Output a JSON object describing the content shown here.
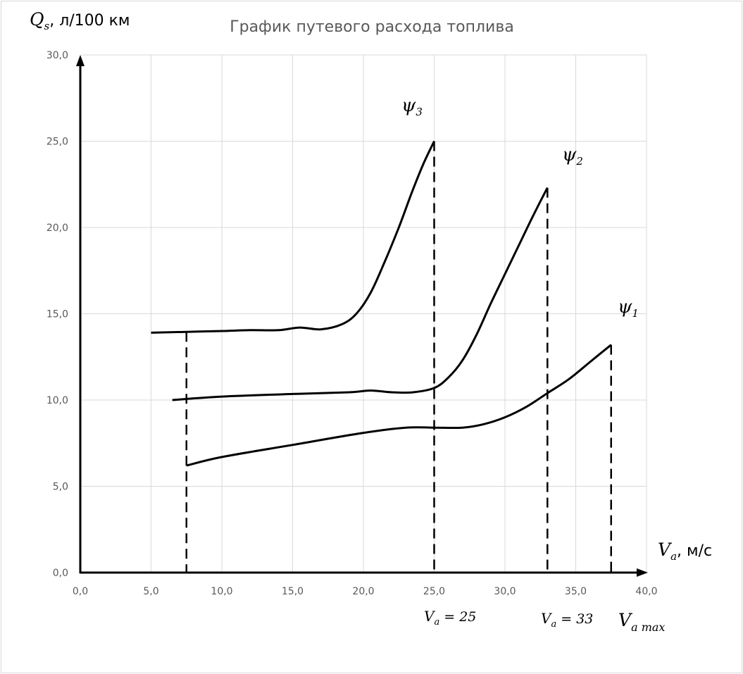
{
  "chart_data": {
    "type": "line",
    "title": "График путевого расхода топлива",
    "ylabel": {
      "symbol": "Q",
      "subscript": "s",
      "unit": ", л/100 км"
    },
    "xlabel": {
      "symbol": "V",
      "subscript": "a",
      "unit": ", м/с"
    },
    "xlim": [
      0,
      40
    ],
    "ylim": [
      0,
      30
    ],
    "xticks": [
      "0,0",
      "5,0",
      "10,0",
      "15,0",
      "20,0",
      "25,0",
      "30,0",
      "35,0",
      "40,0"
    ],
    "yticks": [
      "0,0",
      "5,0",
      "10,0",
      "15,0",
      "20,0",
      "25,0",
      "30,0"
    ],
    "grid": true,
    "series": [
      {
        "name": "ψ3",
        "label": {
          "symbol": "ψ",
          "subscript": "3"
        },
        "points": [
          [
            5.0,
            13.9
          ],
          [
            7.5,
            13.95
          ],
          [
            10.0,
            14.0
          ],
          [
            12.0,
            14.05
          ],
          [
            14.0,
            14.05
          ],
          [
            15.5,
            14.2
          ],
          [
            17.0,
            14.1
          ],
          [
            18.5,
            14.4
          ],
          [
            19.5,
            15.0
          ],
          [
            20.5,
            16.2
          ],
          [
            21.5,
            18.0
          ],
          [
            22.5,
            20.0
          ],
          [
            23.5,
            22.2
          ],
          [
            24.3,
            23.8
          ],
          [
            25.0,
            25.0
          ]
        ]
      },
      {
        "name": "ψ2",
        "label": {
          "symbol": "ψ",
          "subscript": "2"
        },
        "points": [
          [
            6.5,
            10.0
          ],
          [
            10.0,
            10.2
          ],
          [
            15.0,
            10.35
          ],
          [
            19.0,
            10.45
          ],
          [
            20.5,
            10.55
          ],
          [
            22.0,
            10.45
          ],
          [
            23.5,
            10.45
          ],
          [
            25.0,
            10.7
          ],
          [
            26.0,
            11.3
          ],
          [
            27.0,
            12.3
          ],
          [
            28.0,
            13.8
          ],
          [
            29.0,
            15.6
          ],
          [
            30.0,
            17.3
          ],
          [
            31.0,
            19.0
          ],
          [
            32.0,
            20.7
          ],
          [
            33.0,
            22.3
          ]
        ]
      },
      {
        "name": "ψ1",
        "label": {
          "symbol": "ψ",
          "subscript": "1"
        },
        "points": [
          [
            7.5,
            6.2
          ],
          [
            10.0,
            6.7
          ],
          [
            15.0,
            7.4
          ],
          [
            20.0,
            8.1
          ],
          [
            23.0,
            8.4
          ],
          [
            25.0,
            8.4
          ],
          [
            27.0,
            8.4
          ],
          [
            28.5,
            8.6
          ],
          [
            30.0,
            9.0
          ],
          [
            31.5,
            9.6
          ],
          [
            33.0,
            10.4
          ],
          [
            34.5,
            11.2
          ],
          [
            36.0,
            12.2
          ],
          [
            37.5,
            13.2
          ]
        ]
      }
    ],
    "dashed_verticals": [
      {
        "x": 7.5,
        "y_top": 13.95
      },
      {
        "x": 25.0,
        "y_top": 25.0
      },
      {
        "x": 33.0,
        "y_top": 22.3
      },
      {
        "x": 37.5,
        "y_top": 13.2
      }
    ],
    "annotations": [
      {
        "symbol": "V",
        "subscript": "a",
        "text": " = 25",
        "x": 25.0
      },
      {
        "symbol": "V",
        "subscript": "a",
        "text": " = 33",
        "x": 33.0
      },
      {
        "symbol": "V",
        "subscript": "a max",
        "text": "",
        "x": 38.5
      }
    ]
  }
}
